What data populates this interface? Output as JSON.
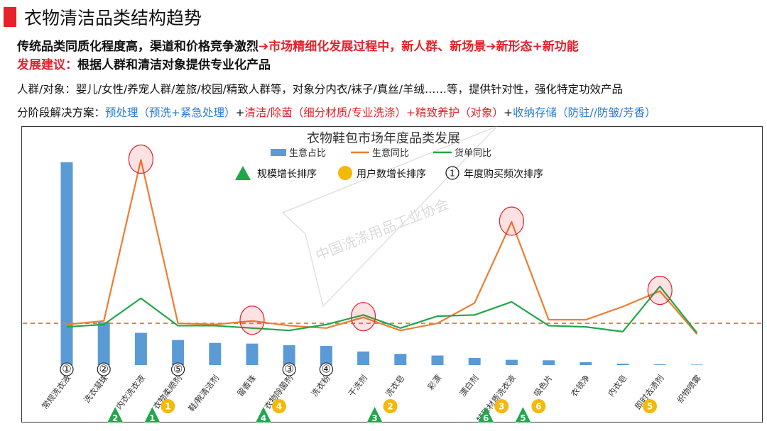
{
  "header": {
    "title": "衣物清洁品类结构趋势",
    "line1": {
      "black": "传统品类同质化程度高，渠道和价格竞争激烈",
      "red": "市场精细化发展过程中，新人群、新场景",
      "red2": "新形态+新功能"
    },
    "line2": {
      "red": "发展建议：",
      "black": "根据人群和清洁对象提供专业化产品"
    },
    "line3": "人群/对象：婴儿/女性/养宠人群/差旅/校园/精致人群等，对象分内衣/袜子/真丝/羊绒……等，提供针对性，强化特定功效产品",
    "line4": {
      "label": "分阶段解决方案：",
      "p1": "预处理（预洗+紧急处理）",
      "plus1": "+",
      "p2": "清洁/除菌（细分材质/专业洗涤）",
      "p3": "+精致养护（对象）",
      "plus2": "+",
      "p4": "收纳存储（防驻//防皱/芳香）"
    }
  },
  "watermark": "中国洗涤用品工业协会",
  "marker_legend": {
    "triangle": "规模增长排序",
    "circle": "用户数增长排序",
    "ring": "年度购买频次排序"
  },
  "colors": {
    "bar": "#5b9bd5",
    "orange": "#ed7d31",
    "green": "#1fa84a",
    "triangle": "#1fa84a",
    "circle": "#f5b90a",
    "highlight": "#e8202a"
  },
  "chart_data": {
    "type": "bar",
    "title": "衣物鞋包市场年度品类发展",
    "categories": [
      "常规洗衣液",
      "洗衣凝珠",
      "内衣洗衣液",
      "衣物柔顺剂",
      "鞋/靴清洁剂",
      "留香珠",
      "衣物除菌剂",
      "洗衣粉",
      "干洗剂",
      "洗衣皂",
      "彩漂",
      "漂白剂",
      "特殊材质洗衣液",
      "吸色片",
      "衣领净",
      "内衣皂",
      "即时去渍剂",
      "织物喷雾"
    ],
    "series": [
      {
        "name": "生意占比",
        "type": "bar",
        "values": [
          85,
          18,
          13.5,
          10.5,
          9.3,
          9,
          8.3,
          8,
          5.7,
          4.7,
          4,
          3,
          2.2,
          2,
          1.2,
          0.6,
          0.3,
          0.2
        ]
      },
      {
        "name": "生意同比",
        "type": "line",
        "values": [
          17,
          18.5,
          86,
          17.5,
          17,
          18.5,
          16.5,
          15.5,
          20,
          14.5,
          17.5,
          26,
          60,
          19,
          19,
          24.5,
          31,
          13
        ]
      },
      {
        "name": "货单同比",
        "type": "line",
        "values": [
          16,
          17,
          28,
          16.5,
          16.5,
          15.5,
          14.5,
          17,
          21,
          15.5,
          20.5,
          21,
          26.5,
          16.5,
          16,
          14,
          33,
          13.5
        ]
      }
    ],
    "reference_line": {
      "value": 17.5,
      "style": "dashed"
    },
    "ylim": [
      0,
      90
    ],
    "legend_position": "top-center",
    "highlight_circles": [
      {
        "series": "生意同比",
        "index": 2
      },
      {
        "series": "生意同比",
        "index": 5
      },
      {
        "series": "生意同比",
        "index": 8
      },
      {
        "series": "生意同比",
        "index": 12
      },
      {
        "series": "生意同比",
        "index": 16
      }
    ],
    "ring_markers": [
      {
        "index": 0,
        "label": "①"
      },
      {
        "index": 1,
        "label": "②"
      },
      {
        "index": 3,
        "label": "⑤"
      },
      {
        "index": 6,
        "label": "③"
      },
      {
        "index": 7,
        "label": "④"
      }
    ],
    "triangle_markers": [
      {
        "index": 1,
        "label": "2"
      },
      {
        "index": 2,
        "label": "1"
      },
      {
        "index": 5,
        "label": "4"
      },
      {
        "index": 8,
        "label": "3"
      },
      {
        "index": 11,
        "label": "6"
      },
      {
        "index": 12,
        "label": "5"
      }
    ],
    "circle_markers": [
      {
        "index": 2,
        "label": "1"
      },
      {
        "index": 5,
        "label": "4"
      },
      {
        "index": 8,
        "label": "2"
      },
      {
        "index": 11,
        "label": "3"
      },
      {
        "index": 12,
        "label": "6"
      },
      {
        "index": 15,
        "label": "5"
      }
    ]
  }
}
